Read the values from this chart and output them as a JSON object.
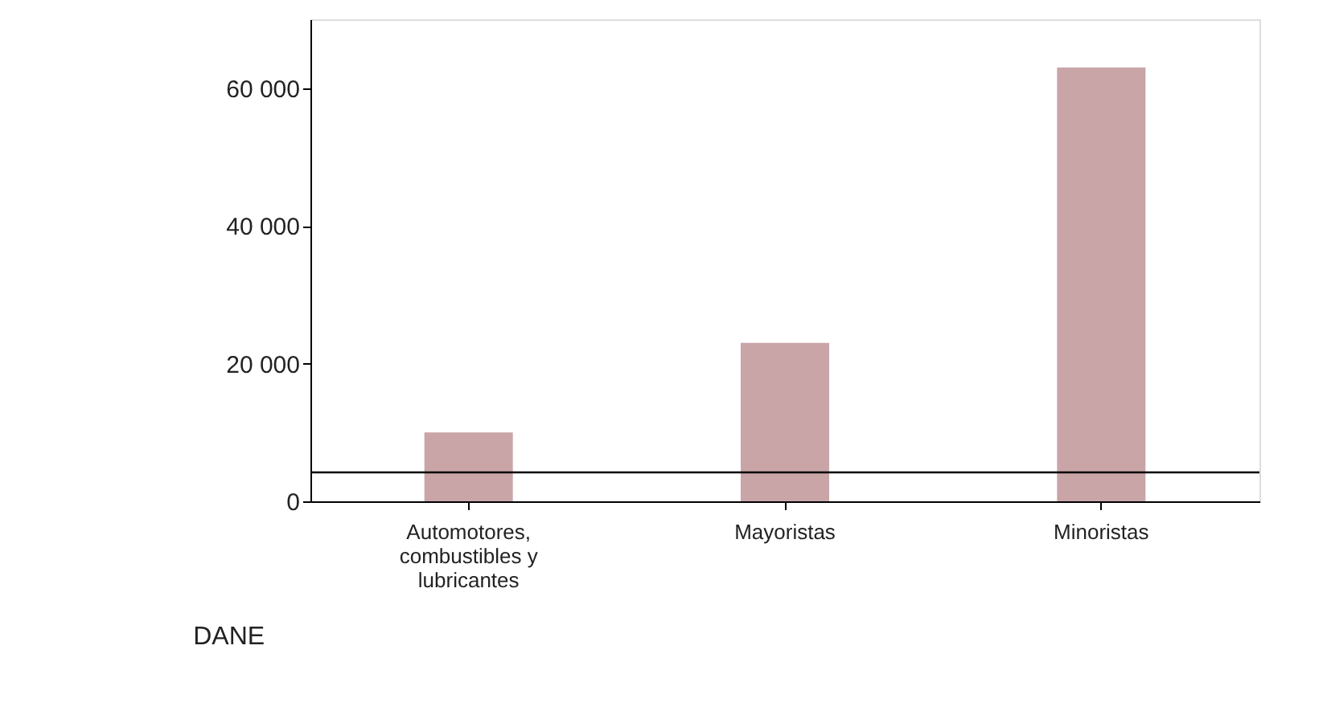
{
  "chart_data": {
    "type": "bar",
    "categories": [
      "Automotores, combustibles y lubricantes",
      "Mayoristas",
      "Minoristas"
    ],
    "values": [
      10000,
      23000,
      63000
    ],
    "color": "#c9a5a8",
    "ylim": [
      0,
      70000
    ],
    "yticks": [
      0,
      {
        "value": 20000,
        "label": "20 000"
      },
      {
        "value": 40000,
        "label": "40 000"
      },
      {
        "value": 60000,
        "label": "60 000"
      }
    ],
    "ref_lines": [
      {
        "axis": "y",
        "value": 4200,
        "color": "#000000"
      }
    ],
    "grid": false,
    "annotations": [
      "DANE"
    ]
  }
}
